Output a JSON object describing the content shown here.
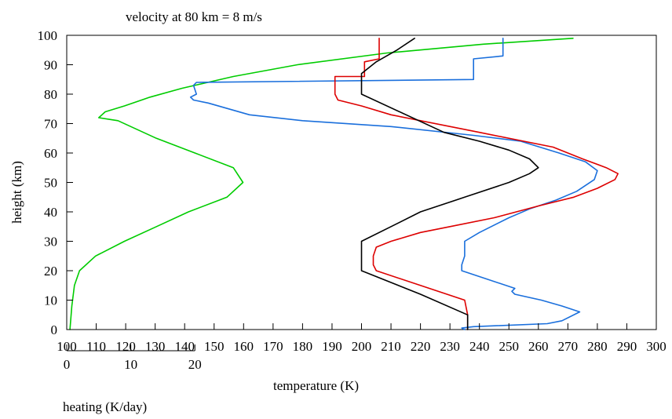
{
  "chart_data": {
    "type": "line",
    "title": "velocity at 80 km =  8 m/s",
    "xlabel": "temperature (K)",
    "ylabel": "height (km)",
    "secondary_xlabel": "heating (K/day)",
    "xlim": [
      100,
      300
    ],
    "ylim": [
      0,
      100
    ],
    "secondary_xlim": [
      0,
      92
    ],
    "x_ticks": [
      100,
      110,
      120,
      130,
      140,
      150,
      160,
      170,
      180,
      190,
      200,
      210,
      220,
      230,
      240,
      250,
      260,
      270,
      280,
      290,
      300
    ],
    "y_ticks": [
      0,
      10,
      20,
      30,
      40,
      50,
      60,
      70,
      80,
      90,
      100
    ],
    "secondary_ticks": [
      0,
      10,
      20
    ],
    "grid": false,
    "legend": "none",
    "series": [
      {
        "color": "#00cc00",
        "axis": "heating",
        "points": [
          [
            0.5,
            0
          ],
          [
            0.8,
            8
          ],
          [
            1.2,
            15
          ],
          [
            2,
            20
          ],
          [
            4.5,
            25
          ],
          [
            9,
            30
          ],
          [
            14,
            35
          ],
          [
            19,
            40
          ],
          [
            25,
            45
          ],
          [
            27.5,
            50
          ],
          [
            26,
            55
          ],
          [
            20,
            60
          ],
          [
            14,
            65
          ],
          [
            10,
            69
          ],
          [
            8,
            71
          ],
          [
            5,
            72
          ],
          [
            6,
            74
          ],
          [
            9,
            76
          ],
          [
            13,
            79
          ],
          [
            18,
            82
          ],
          [
            26,
            86
          ],
          [
            36,
            90
          ],
          [
            50,
            94
          ],
          [
            65,
            97
          ],
          [
            79,
            99
          ]
        ]
      },
      {
        "color": "#1a6fdc",
        "axis": "temperature",
        "points": [
          [
            235,
            0
          ],
          [
            234,
            0.5
          ],
          [
            238,
            1
          ],
          [
            263,
            2
          ],
          [
            268,
            3
          ],
          [
            274,
            6
          ],
          [
            268,
            8
          ],
          [
            261,
            10
          ],
          [
            252,
            12
          ],
          [
            251,
            13
          ],
          [
            252,
            14
          ],
          [
            240,
            18
          ],
          [
            234,
            20
          ],
          [
            234,
            22
          ],
          [
            235,
            25
          ],
          [
            235,
            30
          ],
          [
            240,
            33
          ],
          [
            250,
            38
          ],
          [
            257,
            41
          ],
          [
            266,
            44
          ],
          [
            273,
            47
          ],
          [
            279,
            51
          ],
          [
            280,
            54
          ],
          [
            276,
            57
          ],
          [
            267,
            60
          ],
          [
            254,
            64
          ],
          [
            238,
            66
          ],
          [
            210,
            69
          ],
          [
            180,
            71
          ],
          [
            162,
            73
          ],
          [
            155,
            75
          ],
          [
            148,
            77
          ],
          [
            143,
            78
          ],
          [
            142,
            79
          ],
          [
            144,
            80
          ],
          [
            143,
            83
          ],
          [
            144,
            84
          ],
          [
            238,
            85
          ],
          [
            238,
            92
          ],
          [
            248,
            93
          ],
          [
            248,
            99
          ]
        ]
      },
      {
        "color": "#dd0000",
        "axis": "temperature",
        "points": [
          [
            236,
            0
          ],
          [
            236,
            1
          ],
          [
            236,
            2
          ],
          [
            236,
            5
          ],
          [
            235,
            10
          ],
          [
            220,
            15
          ],
          [
            205,
            20
          ],
          [
            204,
            22
          ],
          [
            204,
            25
          ],
          [
            205,
            28
          ],
          [
            210,
            30
          ],
          [
            220,
            33
          ],
          [
            230,
            35
          ],
          [
            245,
            38
          ],
          [
            260,
            42
          ],
          [
            272,
            45
          ],
          [
            280,
            48
          ],
          [
            286,
            51
          ],
          [
            287,
            53
          ],
          [
            283,
            55
          ],
          [
            275,
            58
          ],
          [
            265,
            62
          ],
          [
            240,
            67
          ],
          [
            210,
            73
          ],
          [
            200,
            76
          ],
          [
            192,
            78
          ],
          [
            191,
            80
          ],
          [
            191,
            86
          ],
          [
            201,
            86
          ],
          [
            201,
            91
          ],
          [
            206,
            92
          ],
          [
            206,
            99
          ]
        ]
      },
      {
        "color": "#000000",
        "axis": "temperature",
        "points": [
          [
            236,
            0
          ],
          [
            236,
            5
          ],
          [
            220,
            12
          ],
          [
            200,
            20
          ],
          [
            200,
            30
          ],
          [
            210,
            35
          ],
          [
            220,
            40
          ],
          [
            235,
            45
          ],
          [
            250,
            50
          ],
          [
            257,
            53
          ],
          [
            260,
            55
          ],
          [
            257,
            58
          ],
          [
            250,
            61
          ],
          [
            240,
            64
          ],
          [
            228,
            67
          ],
          [
            200,
            80
          ],
          [
            200,
            87
          ],
          [
            205,
            91
          ],
          [
            212,
            95
          ],
          [
            218,
            99
          ]
        ]
      }
    ]
  }
}
